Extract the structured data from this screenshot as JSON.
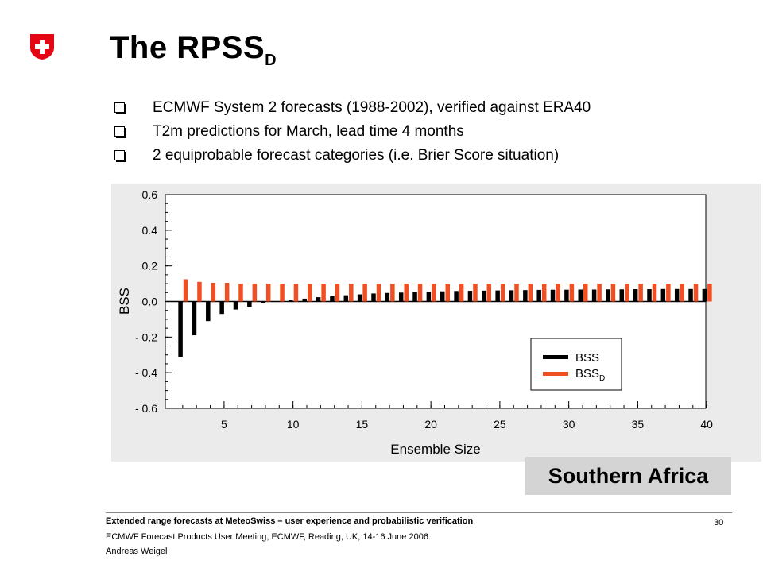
{
  "slide": {
    "title": "The RPSS",
    "title_subscript": "D",
    "bullets": [
      "ECMWF System 2 forecasts (1988-2002), verified against ERA40",
      "T2m predictions for March, lead time 4 months",
      "2 equiprobable forecast categories (i.e. Brier Score situation)"
    ],
    "region_label": "Southern Africa",
    "footer": {
      "line1": "Extended range forecasts at MeteoSwiss – user experience and probabilistic  verification",
      "line2": "ECMWF Forecast Products User Meeting, ECMWF, Reading, UK, 14-16 June 2006",
      "line3": "Andreas Weigel",
      "page_number": "30"
    },
    "logo": {
      "icon": "swiss-cross-shield-icon",
      "color": "#e30613"
    }
  },
  "chart_data": {
    "type": "bar",
    "xlabel": "Ensemble Size",
    "ylabel": "BSS",
    "xlim": [
      1,
      40
    ],
    "ylim": [
      -0.6,
      0.6
    ],
    "x_ticks": [
      "5",
      "10",
      "15",
      "20",
      "25",
      "30",
      "35",
      "40"
    ],
    "x_tick_values": [
      5,
      10,
      15,
      20,
      25,
      30,
      35,
      40
    ],
    "y_ticks": [
      "0.6",
      "0.4",
      "0.2",
      "0.0",
      "- 0.2",
      "- 0.4",
      "- 0.6"
    ],
    "y_tick_values": [
      0.6,
      0.4,
      0.2,
      0.0,
      -0.2,
      -0.4,
      -0.6
    ],
    "x": [
      2,
      3,
      4,
      5,
      6,
      7,
      8,
      9,
      10,
      11,
      12,
      13,
      14,
      15,
      16,
      17,
      18,
      19,
      20,
      21,
      22,
      23,
      24,
      25,
      26,
      27,
      28,
      29,
      30,
      31,
      32,
      33,
      34,
      35,
      36,
      37,
      38,
      39,
      40
    ],
    "series": [
      {
        "name": "BSS",
        "color": "#000000",
        "values": [
          -0.31,
          -0.19,
          -0.11,
          -0.07,
          -0.045,
          -0.03,
          -0.008,
          0.0,
          0.008,
          0.016,
          0.024,
          0.03,
          0.035,
          0.04,
          0.045,
          0.048,
          0.05,
          0.053,
          0.055,
          0.057,
          0.059,
          0.06,
          0.061,
          0.062,
          0.063,
          0.064,
          0.065,
          0.066,
          0.066,
          0.067,
          0.067,
          0.068,
          0.068,
          0.069,
          0.069,
          0.07,
          0.07,
          0.07,
          0.07
        ]
      },
      {
        "name": "BSS",
        "name_subscript": "D",
        "color": "#f04e23",
        "values": [
          0.125,
          0.11,
          0.105,
          0.105,
          0.1,
          0.1,
          0.1,
          0.1,
          0.1,
          0.1,
          0.1,
          0.1,
          0.1,
          0.1,
          0.1,
          0.1,
          0.1,
          0.1,
          0.1,
          0.1,
          0.1,
          0.1,
          0.1,
          0.1,
          0.1,
          0.1,
          0.1,
          0.1,
          0.1,
          0.1,
          0.1,
          0.1,
          0.1,
          0.1,
          0.1,
          0.1,
          0.1,
          0.1,
          0.1
        ]
      }
    ],
    "legend_position": "lower-right",
    "grid": false
  }
}
